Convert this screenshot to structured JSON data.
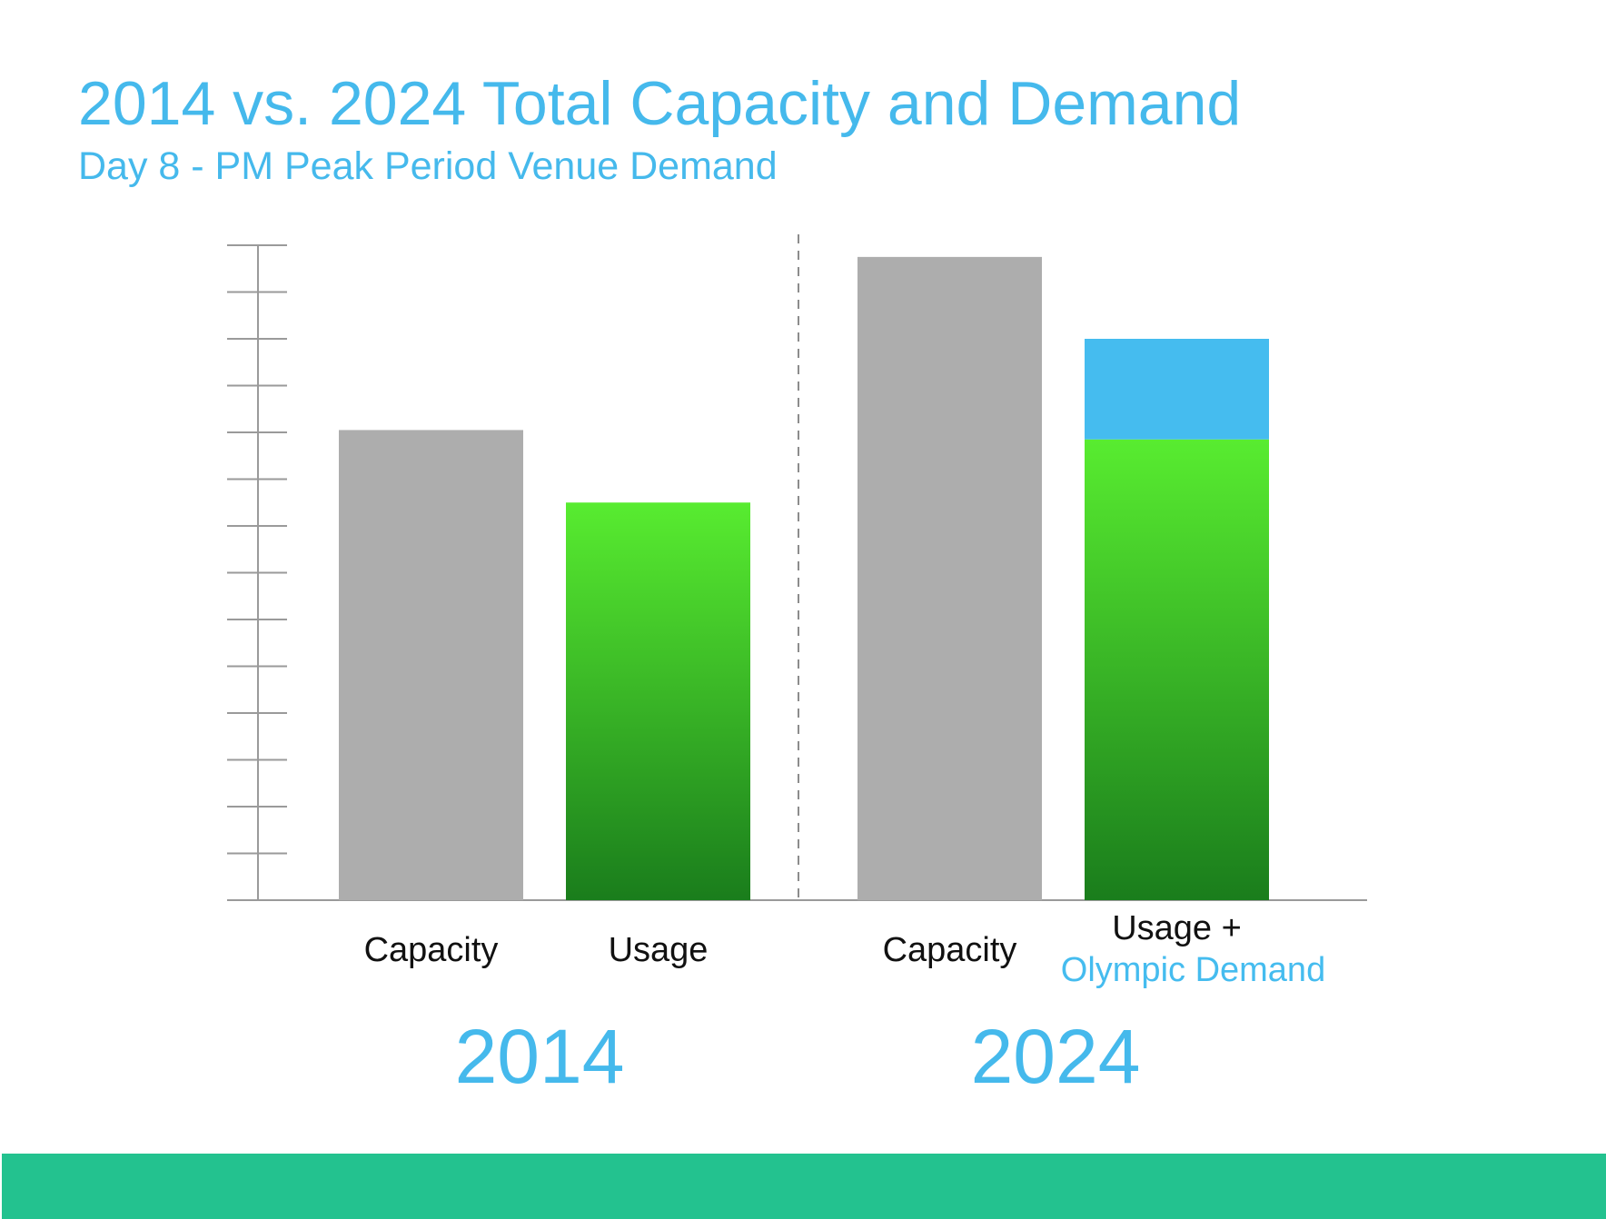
{
  "slide": {
    "title": "2014 vs. 2024 Total Capacity and Demand",
    "subtitle": "Day 8 - PM Peak Period Venue Demand",
    "title_color": "#45b9ec",
    "footer_color": "#23c28f"
  },
  "chart_data": {
    "type": "bar",
    "title": "2014 vs. 2024 Total Capacity and Demand",
    "subtitle": "Day 8 - PM Peak Period Venue Demand",
    "xlabel": "",
    "ylabel": "",
    "y_tick_labels": [],
    "ylim": [
      0,
      14
    ],
    "y_tick_count": 15,
    "grid": false,
    "groups": [
      "2014",
      "2024"
    ],
    "bars": [
      {
        "group": "2014",
        "label": "Capacity",
        "segments": [
          {
            "name": "Capacity",
            "value": 10.05,
            "color": "#adadad"
          }
        ]
      },
      {
        "group": "2014",
        "label": "Usage",
        "segments": [
          {
            "name": "Usage",
            "value": 8.5,
            "color": "gradient-green"
          }
        ]
      },
      {
        "group": "2024",
        "label": "Capacity",
        "segments": [
          {
            "name": "Capacity",
            "value": 13.75,
            "color": "#adadad"
          }
        ]
      },
      {
        "group": "2024",
        "label": "Usage +",
        "label_extra": "Olympic Demand",
        "segments": [
          {
            "name": "Usage",
            "value": 9.85,
            "color": "gradient-green"
          },
          {
            "name": "Olympic Demand",
            "value": 2.15,
            "color": "#45bcef"
          }
        ]
      }
    ],
    "colors": {
      "capacity": "#adadad",
      "usage_top": "#58ec30",
      "usage_bottom": "#1a7d1c",
      "olympic": "#45bcef",
      "group_label": "#45b9ec",
      "axis": "#9a9a9a",
      "divider": "#8c8c8c"
    },
    "divider": "dashed vertical line between 2014 and 2024 groups"
  }
}
